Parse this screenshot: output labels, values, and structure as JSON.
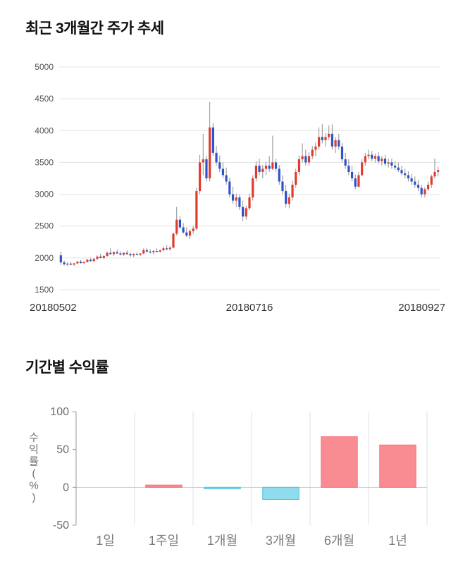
{
  "sections": {
    "price": {
      "title": "최근 3개월간 주가 추세"
    },
    "returns": {
      "title": "기간별 수익률"
    }
  },
  "chart_data": [
    {
      "type": "candlestick",
      "title": "최근 3개월간 주가 추세",
      "xlabels": [
        "20180502",
        "20180716",
        "20180927"
      ],
      "yticks": [
        1500,
        2000,
        2500,
        3000,
        3500,
        4000,
        4500,
        5000
      ],
      "ylim": [
        1500,
        5000
      ],
      "colors": {
        "up": "#e13b2e",
        "down": "#2f52c8",
        "wick": "#909090",
        "grid": "#e4e4e4",
        "ytick_text": "#555555",
        "xtick_text": "#333333"
      },
      "candles": [
        [
          2040,
          2100,
          1890,
          1930
        ],
        [
          1930,
          1960,
          1880,
          1900
        ],
        [
          1900,
          1930,
          1870,
          1910
        ],
        [
          1910,
          1935,
          1885,
          1895
        ],
        [
          1895,
          1920,
          1875,
          1915
        ],
        [
          1915,
          1950,
          1900,
          1940
        ],
        [
          1940,
          1965,
          1910,
          1920
        ],
        [
          1920,
          1945,
          1900,
          1935
        ],
        [
          1935,
          1985,
          1925,
          1970
        ],
        [
          1970,
          2000,
          1940,
          1950
        ],
        [
          1950,
          1995,
          1940,
          1985
        ],
        [
          1985,
          2040,
          1970,
          2020
        ],
        [
          2020,
          2065,
          1990,
          2000
        ],
        [
          2000,
          2045,
          1980,
          2030
        ],
        [
          2030,
          2100,
          2020,
          2080
        ],
        [
          2080,
          2150,
          2050,
          2060
        ],
        [
          2060,
          2105,
          2030,
          2090
        ],
        [
          2090,
          2130,
          2060,
          2070
        ],
        [
          2070,
          2100,
          2040,
          2050
        ],
        [
          2050,
          2090,
          2030,
          2080
        ],
        [
          2080,
          2120,
          2050,
          2060
        ],
        [
          2060,
          2085,
          2020,
          2040
        ],
        [
          2040,
          2075,
          2010,
          2060
        ],
        [
          2060,
          2090,
          2040,
          2050
        ],
        [
          2050,
          2080,
          2030,
          2070
        ],
        [
          2070,
          2150,
          2060,
          2120
        ],
        [
          2120,
          2160,
          2080,
          2100
        ],
        [
          2100,
          2140,
          2070,
          2090
        ],
        [
          2090,
          2120,
          2060,
          2110
        ],
        [
          2110,
          2150,
          2090,
          2100
        ],
        [
          2100,
          2135,
          2080,
          2120
        ],
        [
          2120,
          2180,
          2100,
          2150
        ],
        [
          2150,
          2200,
          2120,
          2140
        ],
        [
          2140,
          2185,
          2110,
          2160
        ],
        [
          2160,
          2400,
          2150,
          2380
        ],
        [
          2380,
          2800,
          2350,
          2600
        ],
        [
          2600,
          2650,
          2450,
          2480
        ],
        [
          2480,
          2550,
          2380,
          2400
        ],
        [
          2400,
          2480,
          2330,
          2350
        ],
        [
          2350,
          2450,
          2300,
          2420
        ],
        [
          2420,
          2500,
          2380,
          2460
        ],
        [
          2460,
          3100,
          2440,
          3050
        ],
        [
          3050,
          3620,
          3000,
          3500
        ],
        [
          3500,
          3950,
          3300,
          3550
        ],
        [
          3550,
          3600,
          3200,
          3250
        ],
        [
          3250,
          4450,
          3200,
          4050
        ],
        [
          4050,
          4120,
          3600,
          3650
        ],
        [
          3650,
          3760,
          3450,
          3500
        ],
        [
          3500,
          3610,
          3350,
          3400
        ],
        [
          3400,
          3500,
          3250,
          3300
        ],
        [
          3300,
          3420,
          3150,
          3200
        ],
        [
          3200,
          3260,
          2950,
          3000
        ],
        [
          3000,
          3120,
          2850,
          2900
        ],
        [
          2900,
          3010,
          2800,
          2950
        ],
        [
          2950,
          3000,
          2750,
          2800
        ],
        [
          2800,
          2900,
          2580,
          2650
        ],
        [
          2650,
          2820,
          2600,
          2780
        ],
        [
          2780,
          3010,
          2750,
          2950
        ],
        [
          2950,
          3300,
          2900,
          3250
        ],
        [
          3250,
          3520,
          3200,
          3450
        ],
        [
          3450,
          3560,
          3300,
          3350
        ],
        [
          3350,
          3460,
          3250,
          3400
        ],
        [
          3400,
          3510,
          3300,
          3450
        ],
        [
          3450,
          3600,
          3350,
          3400
        ],
        [
          3400,
          3920,
          3380,
          3500
        ],
        [
          3500,
          3560,
          3350,
          3400
        ],
        [
          3400,
          3460,
          3150,
          3200
        ],
        [
          3200,
          3300,
          3000,
          3050
        ],
        [
          3050,
          3150,
          2790,
          2850
        ],
        [
          2850,
          3010,
          2780,
          2950
        ],
        [
          2950,
          3210,
          2900,
          3150
        ],
        [
          3150,
          3400,
          3100,
          3350
        ],
        [
          3350,
          3610,
          3300,
          3550
        ],
        [
          3550,
          3800,
          3500,
          3600
        ],
        [
          3600,
          3700,
          3450,
          3500
        ],
        [
          3500,
          3660,
          3450,
          3600
        ],
        [
          3600,
          3760,
          3550,
          3700
        ],
        [
          3700,
          3810,
          3600,
          3750
        ],
        [
          3750,
          4050,
          3700,
          3900
        ],
        [
          3900,
          4100,
          3800,
          3850
        ],
        [
          3850,
          3960,
          3750,
          3900
        ],
        [
          3900,
          4080,
          3850,
          3950
        ],
        [
          3950,
          4100,
          3700,
          3750
        ],
        [
          3750,
          3900,
          3650,
          3850
        ],
        [
          3850,
          3950,
          3700,
          3750
        ],
        [
          3750,
          3810,
          3500,
          3550
        ],
        [
          3550,
          3650,
          3400,
          3450
        ],
        [
          3450,
          3550,
          3300,
          3350
        ],
        [
          3350,
          3450,
          3200,
          3250
        ],
        [
          3250,
          3310,
          3080,
          3120
        ],
        [
          3120,
          3350,
          3100,
          3300
        ],
        [
          3300,
          3550,
          3280,
          3500
        ],
        [
          3500,
          3650,
          3450,
          3600
        ],
        [
          3600,
          3700,
          3550,
          3620
        ],
        [
          3620,
          3680,
          3520,
          3560
        ],
        [
          3560,
          3640,
          3500,
          3600
        ],
        [
          3600,
          3660,
          3480,
          3520
        ],
        [
          3520,
          3600,
          3450,
          3560
        ],
        [
          3560,
          3620,
          3440,
          3480
        ],
        [
          3480,
          3560,
          3420,
          3500
        ],
        [
          3500,
          3560,
          3400,
          3450
        ],
        [
          3450,
          3520,
          3380,
          3420
        ],
        [
          3420,
          3500,
          3350,
          3380
        ],
        [
          3380,
          3450,
          3300,
          3330
        ],
        [
          3330,
          3400,
          3250,
          3300
        ],
        [
          3300,
          3360,
          3200,
          3250
        ],
        [
          3250,
          3320,
          3150,
          3200
        ],
        [
          3200,
          3280,
          3100,
          3150
        ],
        [
          3150,
          3220,
          3050,
          3100
        ],
        [
          3100,
          3150,
          2950,
          3000
        ],
        [
          3000,
          3110,
          2950,
          3080
        ],
        [
          3080,
          3200,
          3050,
          3150
        ],
        [
          3150,
          3310,
          3100,
          3280
        ],
        [
          3280,
          3560,
          3250,
          3350
        ],
        [
          3350,
          3430,
          3280,
          3380
        ]
      ]
    },
    {
      "type": "bar",
      "title": "기간별 수익률",
      "categories": [
        "1일",
        "1주일",
        "1개월",
        "3개월",
        "6개월",
        "1년"
      ],
      "values": [
        0,
        3,
        -2,
        -16,
        67,
        56
      ],
      "ylabel": "수익률(%)",
      "yticks": [
        100,
        50,
        0,
        -50
      ],
      "ylim": [
        -50,
        100
      ],
      "colors": {
        "pos_fill": "#f98b92",
        "pos_stroke": "#f7717a",
        "neg_fill": "#8edcec",
        "neg_stroke": "#45c6dd",
        "axis_line": "#999999",
        "zero_line": "#cccccc",
        "vgrid": "#e2e2e2",
        "tick_text": "#6e6e6e",
        "cat_text": "#7a7a7a",
        "ylabel_text": "#6e6e6e"
      }
    }
  ]
}
